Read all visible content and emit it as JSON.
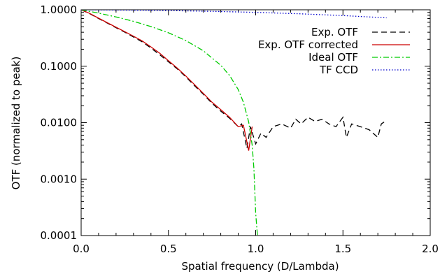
{
  "chart_data": {
    "type": "line",
    "xlabel": "Spatial frequency (D/Lambda)",
    "ylabel": "OTF (normalized to peak)",
    "xlim": [
      0.0,
      2.0
    ],
    "ylim": [
      0.0001,
      1.0
    ],
    "yscale": "log",
    "xticks": [
      0.0,
      0.5,
      1.0,
      1.5,
      2.0
    ],
    "xtick_labels": [
      "0.0",
      "0.5",
      "1.0",
      "1.5",
      "2.0"
    ],
    "yticks": [
      1.0,
      0.1,
      0.01,
      0.001,
      0.0001
    ],
    "ytick_labels": [
      "1.0000",
      "0.1000",
      "0.0100",
      "0.0010",
      "0.0001"
    ],
    "grid": false,
    "legend_position": "top-right",
    "series": [
      {
        "name": "Exp. OTF",
        "color": "#000000",
        "style": "dashed",
        "x": [
          0.0,
          0.05,
          0.1,
          0.15,
          0.2,
          0.25,
          0.3,
          0.35,
          0.4,
          0.45,
          0.5,
          0.55,
          0.6,
          0.65,
          0.7,
          0.75,
          0.8,
          0.85,
          0.9,
          0.92,
          0.95,
          0.97,
          1.0,
          1.03,
          1.06,
          1.1,
          1.15,
          1.2,
          1.23,
          1.26,
          1.3,
          1.34,
          1.38,
          1.42,
          1.46,
          1.5,
          1.52,
          1.55,
          1.6,
          1.65,
          1.7,
          1.72,
          1.75
        ],
        "y": [
          1.0,
          0.85,
          0.7,
          0.58,
          0.48,
          0.4,
          0.33,
          0.27,
          0.21,
          0.16,
          0.12,
          0.09,
          0.065,
          0.045,
          0.032,
          0.022,
          0.016,
          0.012,
          0.0085,
          0.0095,
          0.0035,
          0.0085,
          0.0042,
          0.0065,
          0.0055,
          0.0085,
          0.0095,
          0.008,
          0.0115,
          0.0095,
          0.0125,
          0.0105,
          0.0115,
          0.0095,
          0.0085,
          0.0125,
          0.0055,
          0.0095,
          0.0085,
          0.0075,
          0.0055,
          0.0095,
          0.011
        ]
      },
      {
        "name": "Exp. OTF corrected",
        "color": "#cc0000",
        "style": "solid",
        "x": [
          0.0,
          0.05,
          0.1,
          0.15,
          0.2,
          0.25,
          0.3,
          0.35,
          0.4,
          0.45,
          0.5,
          0.55,
          0.6,
          0.65,
          0.7,
          0.75,
          0.8,
          0.85,
          0.9,
          0.93,
          0.96,
          0.98
        ],
        "y": [
          1.0,
          0.86,
          0.71,
          0.59,
          0.49,
          0.41,
          0.34,
          0.28,
          0.22,
          0.17,
          0.125,
          0.093,
          0.067,
          0.047,
          0.033,
          0.023,
          0.017,
          0.0125,
          0.0085,
          0.009,
          0.0032,
          0.0085
        ]
      },
      {
        "name": "Ideal OTF",
        "color": "#00cc00",
        "style": "dashdot",
        "x": [
          0.0,
          0.1,
          0.2,
          0.3,
          0.4,
          0.5,
          0.6,
          0.7,
          0.8,
          0.85,
          0.9,
          0.93,
          0.96,
          0.98,
          0.99,
          1.0,
          1.01
        ],
        "y": [
          1.0,
          0.873,
          0.747,
          0.624,
          0.505,
          0.391,
          0.285,
          0.188,
          0.104,
          0.069,
          0.0385,
          0.0229,
          0.0103,
          0.004,
          0.0015,
          0.00025,
          0.0001
        ]
      },
      {
        "name": "TF CCD",
        "color": "#0000cc",
        "style": "dotted",
        "x": [
          0.0,
          0.25,
          0.5,
          0.75,
          1.0,
          1.25,
          1.5,
          1.75
        ],
        "y": [
          1.0,
          0.99,
          0.97,
          0.94,
          0.9,
          0.85,
          0.79,
          0.72
        ]
      }
    ]
  }
}
